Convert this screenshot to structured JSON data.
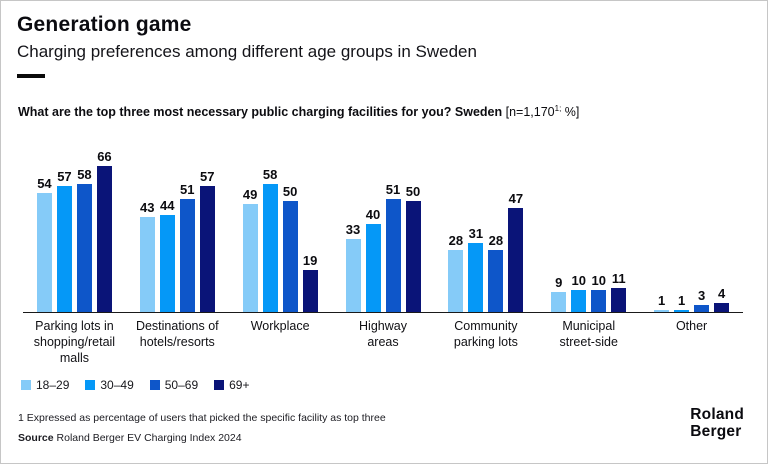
{
  "header": {
    "title": "Generation game",
    "subtitle": "Charging preferences among different age groups in Sweden"
  },
  "question": {
    "bold": "What are the top three most necessary public charging facilities for you? Sweden ",
    "bracket_open": "[n=1,170",
    "sup": "1;",
    "bracket_close": " %]"
  },
  "chart_data": {
    "type": "bar",
    "title": "What are the top three most necessary public charging facilities for you? Sweden [n=1,170; %]",
    "categories": [
      "Parking lots in\nshopping/retail\nmalls",
      "Destinations of\nhotels/resorts",
      "Workplace",
      "Highway\nareas",
      "Community\nparking lots",
      "Municipal\nstreet-side",
      "Other"
    ],
    "series": [
      {
        "name": "18–29",
        "color": "#85CBF8",
        "values": [
          54,
          43,
          49,
          33,
          28,
          9,
          1
        ]
      },
      {
        "name": "30–49",
        "color": "#0598F7",
        "values": [
          57,
          44,
          58,
          40,
          31,
          10,
          1
        ]
      },
      {
        "name": "50–69",
        "color": "#0E56C9",
        "values": [
          58,
          51,
          50,
          51,
          28,
          10,
          3
        ]
      },
      {
        "name": "69+",
        "color": "#0A1478",
        "values": [
          66,
          57,
          19,
          50,
          47,
          11,
          4
        ]
      }
    ],
    "ylim": [
      0,
      70
    ],
    "xlabel": "",
    "ylabel": "",
    "grid": false,
    "value_labels": true,
    "legend_position": "bottom-left"
  },
  "footer": {
    "footnote": "1 Expressed as percentage of users that picked the specific facility as top three",
    "source_label": "Source",
    "source_text": " Roland Berger EV Charging Index 2024",
    "logo_line1": "Roland",
    "logo_line2": "Berger"
  }
}
